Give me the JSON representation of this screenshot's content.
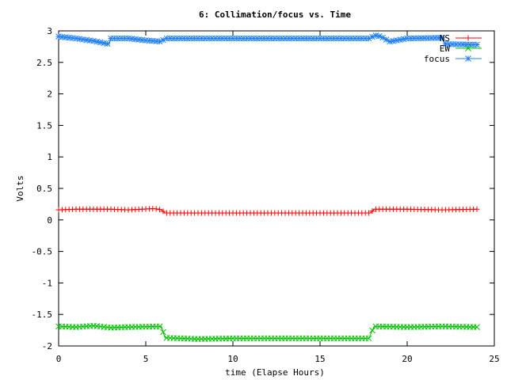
{
  "chart_data": {
    "type": "line",
    "title": "6: Collimation/focus vs. Time",
    "xlabel": "time (Elapse Hours)",
    "ylabel": "Volts",
    "xlim": [
      0,
      25
    ],
    "ylim": [
      -2,
      3
    ],
    "xticks": [
      "0",
      "5",
      "10",
      "15",
      "20",
      "25"
    ],
    "yticks": [
      "-2",
      "-1.5",
      "-1",
      "-0.5",
      "0",
      "0.5",
      "1",
      "1.5",
      "2",
      "2.5",
      "3"
    ],
    "legend_position": "top-right",
    "marker_step_hours": 0.2,
    "series": [
      {
        "name": "NS",
        "color": "#ff0000",
        "marker": "plus",
        "x": [
          0,
          1,
          2,
          3,
          4,
          5.5,
          5.9,
          6.1,
          10,
          15,
          17.9,
          18.1,
          20,
          22,
          24
        ],
        "y": [
          0.16,
          0.17,
          0.17,
          0.17,
          0.16,
          0.18,
          0.16,
          0.11,
          0.11,
          0.11,
          0.11,
          0.17,
          0.17,
          0.16,
          0.17
        ]
      },
      {
        "name": "EW",
        "color": "#00c000",
        "marker": "cross",
        "x": [
          0,
          1,
          2,
          3,
          4,
          5.9,
          6.1,
          7,
          8,
          10,
          15,
          17.8,
          18.1,
          20,
          22,
          24
        ],
        "y": [
          -1.69,
          -1.7,
          -1.68,
          -1.71,
          -1.7,
          -1.69,
          -1.87,
          -1.88,
          -1.89,
          -1.88,
          -1.88,
          -1.88,
          -1.69,
          -1.7,
          -1.69,
          -1.7
        ]
      },
      {
        "name": "focus",
        "color": "#2080f0",
        "marker": "star",
        "x": [
          0,
          1,
          2,
          2.9,
          3.0,
          4,
          5,
          5.9,
          6.1,
          10,
          15,
          17.9,
          18.1,
          18.5,
          19,
          20,
          22,
          22.2,
          24
        ],
        "y": [
          2.91,
          2.88,
          2.84,
          2.79,
          2.88,
          2.88,
          2.85,
          2.83,
          2.88,
          2.88,
          2.88,
          2.88,
          2.93,
          2.91,
          2.83,
          2.88,
          2.89,
          2.79,
          2.78
        ]
      }
    ]
  }
}
